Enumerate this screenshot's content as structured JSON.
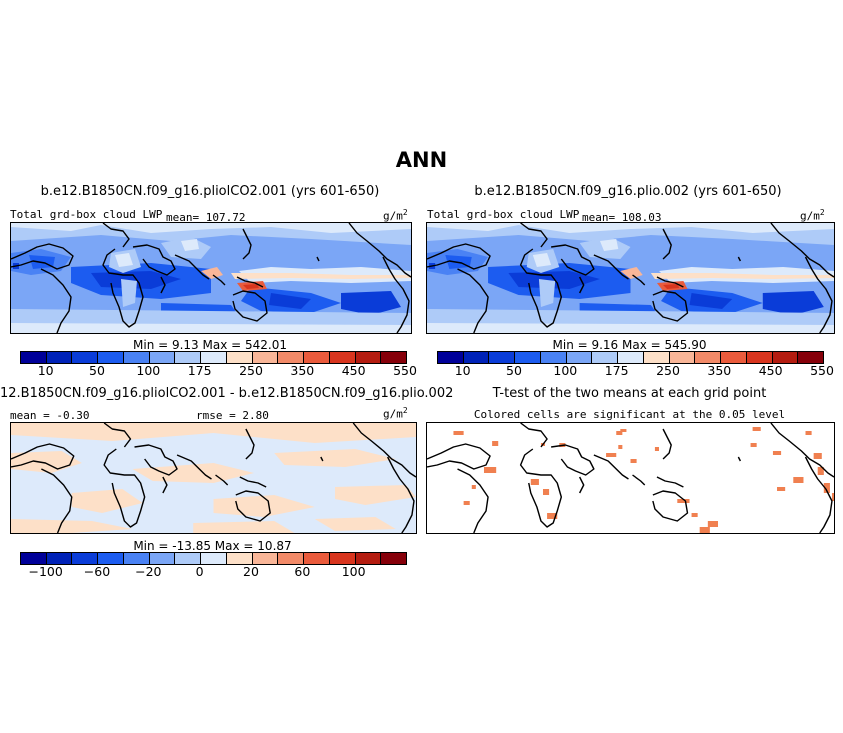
{
  "figure": {
    "suptitle": "ANN"
  },
  "colors": {
    "scale": [
      "#000099",
      "#0022b8",
      "#0a3cd8",
      "#1c5cf0",
      "#4a82f4",
      "#7ba6f6",
      "#aecbf8",
      "#ddeafb",
      "#fde0c8",
      "#f9b698",
      "#f28a68",
      "#ea5b3c",
      "#d8351e",
      "#b41c10",
      "#86000a"
    ],
    "coastline": "#000000",
    "significant_cell": "#f08050"
  },
  "panels": {
    "p1": {
      "title": "b.e12.B1850CN.f09_g16.pliolCO2.001 (yrs 601-650)",
      "left_label": "Total grd-box cloud LWP",
      "mean_label": "mean= 107.72",
      "units": "g/m",
      "units_exp": "2",
      "minmax": "Min =   9.13 Max = 542.01"
    },
    "p2": {
      "title": "b.e12.B1850CN.f09_g16.plio.002 (yrs 601-650)",
      "left_label": "Total grd-box cloud LWP",
      "mean_label": "mean= 108.03",
      "units": "g/m",
      "units_exp": "2",
      "minmax": "Min =   9.16 Max = 545.90"
    },
    "p3": {
      "title": "12.B1850CN.f09_g16.pliolCO2.001 - b.e12.B1850CN.f09_g16.plio.002",
      "left_label": "mean =  -0.30",
      "mid_label": "rmse =   2.80",
      "units": "g/m",
      "units_exp": "2",
      "minmax": "Min = -13.85 Max =  10.87"
    },
    "p4": {
      "title": "T-test of the two means at each grid point",
      "subtitle": "Colored cells are significant at the 0.05 level"
    }
  },
  "chart_data": [
    {
      "type": "heatmap",
      "title": "b.e12.B1850CN.f09_g16.pliolCO2.001 (yrs 601-650)",
      "variable": "Total grd-box cloud LWP",
      "units": "g/m^2",
      "mean": 107.72,
      "min": 9.13,
      "max": 542.01,
      "colorbar_ticks": [
        "10",
        "50",
        "100",
        "175",
        "250",
        "350",
        "450",
        "550"
      ]
    },
    {
      "type": "heatmap",
      "title": "b.e12.B1850CN.f09_g16.plio.002 (yrs 601-650)",
      "variable": "Total grd-box cloud LWP",
      "units": "g/m^2",
      "mean": 108.03,
      "min": 9.16,
      "max": 545.9,
      "colorbar_ticks": [
        "10",
        "50",
        "100",
        "175",
        "250",
        "350",
        "450",
        "550"
      ]
    },
    {
      "type": "heatmap",
      "title": "12.B1850CN.f09_g16.pliolCO2.001 - b.e12.B1850CN.f09_g16.plio.002",
      "units": "g/m^2",
      "mean": -0.3,
      "rmse": 2.8,
      "min": -13.85,
      "max": 10.87,
      "colorbar_ticks": [
        "−100",
        "−60",
        "−20",
        "0",
        "20",
        "60",
        "100"
      ]
    },
    {
      "type": "heatmap",
      "title": "T-test of the two means at each grid point",
      "subtitle": "Colored cells are significant at the 0.05 level"
    }
  ]
}
